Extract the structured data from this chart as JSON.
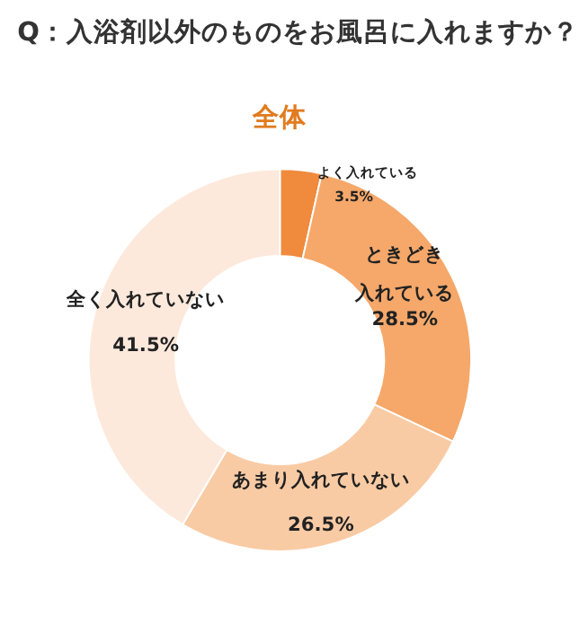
{
  "chart_data": {
    "type": "donut",
    "title": "Q：入浴剤以外のものをお風呂に入れますか？",
    "subtitle": "全体",
    "categories": [
      "よく入れている",
      "ときどき入れている",
      "あまり入れていない",
      "全く入れていない"
    ],
    "values": [
      3.5,
      28.5,
      26.5,
      41.5
    ],
    "colors": [
      "#f08a3c",
      "#f5a86a",
      "#f9cba4",
      "#fde9dc"
    ],
    "value_labels": [
      "3.5%",
      "28.5%",
      "26.5%",
      "41.5%"
    ],
    "legend": false
  }
}
